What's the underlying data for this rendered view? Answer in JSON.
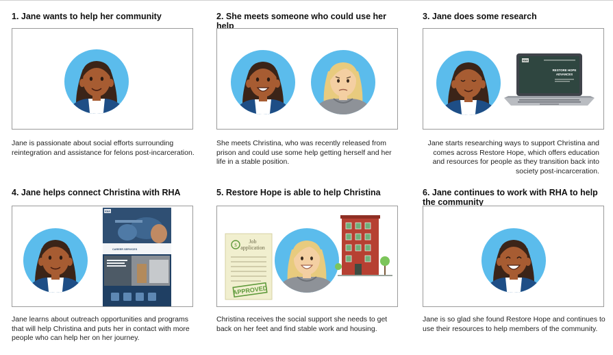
{
  "panels": [
    {
      "title": "1. Jane wants to help her community",
      "caption": "Jane is passionate about social efforts surrounding reintegration and assistance for felons post-incarceration."
    },
    {
      "title": "2. She meets someone who could use her help",
      "caption": "She meets Christina, who was recently released from prison and could use some help getting herself and her life in a stable position."
    },
    {
      "title": "3. Jane does some research",
      "caption": "Jane starts researching ways to support Christina and comes across Restore Hope, which offers education and resources for people as they transition back into society post-incarceration."
    },
    {
      "title": "4. Jane helps connect Christina with RHA",
      "caption": "Jane learns about outreach opportunities and programs that will help Christina and puts her in contact with more people who can help her on her journey."
    },
    {
      "title": "5. Restore Hope is able to help Christina",
      "caption": "Christina receives the social support she needs to get back on her feet and find stable work and housing."
    },
    {
      "title": "6. Jane continues to work with RHA to help the community",
      "caption": "Jane is so glad she found Restore Hope and continues to use their resources to help members of the community."
    }
  ],
  "laptop_screen": {
    "logo": "RHA",
    "headline_1": "RESTORE HOPE",
    "headline_2": "ADVANCES"
  },
  "website_screenshot": {
    "logo": "RHA",
    "section_label": "CAREER SERVICES"
  },
  "job_application": {
    "heading_1": "Job",
    "heading_2": "application",
    "stamp": "APPROVED"
  },
  "colors": {
    "avatar_circle": "#5bbcec",
    "jane_skin": "#a75c32",
    "jane_hair": "#3b2418",
    "jane_jacket": "#1e4e86",
    "christina_skin": "#f4cfa2",
    "christina_hair": "#e8cb7e",
    "christina_hoodie": "#8e9298",
    "brick": "#b64032",
    "paper": "#f1efcf",
    "stamp": "#5f9a3c"
  }
}
